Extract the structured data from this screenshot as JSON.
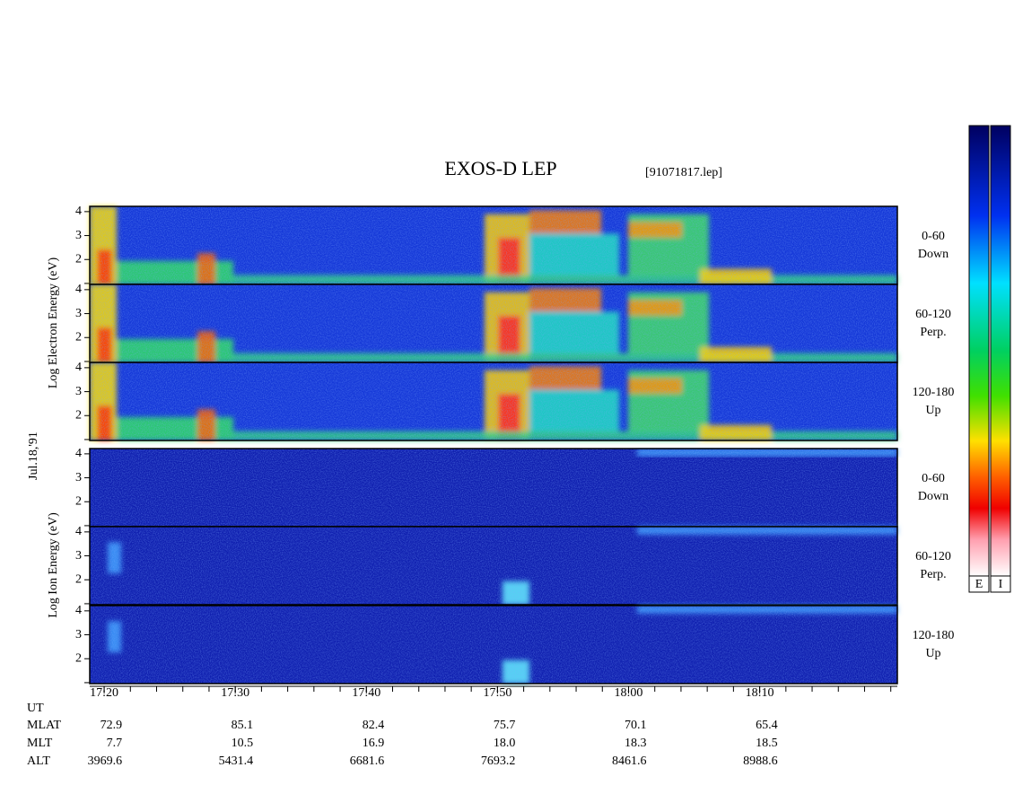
{
  "title": "EXOS-D LEP",
  "file": "[91071817.lep]",
  "date": "Jul.18,'91",
  "electron": {
    "y_label": "Log  Electron  Energy (eV)",
    "panels": [
      {
        "angle": "0-60",
        "direction": "Down"
      },
      {
        "angle": "60-120",
        "direction": "Perp."
      },
      {
        "angle": "120-180",
        "direction": "Up"
      }
    ]
  },
  "ion": {
    "y_label": "Log  Ion  Energy (eV)",
    "panels": [
      {
        "angle": "0-60",
        "direction": "Down"
      },
      {
        "angle": "60-120",
        "direction": "Perp."
      },
      {
        "angle": "120-180",
        "direction": "Up"
      }
    ]
  },
  "ylim": [
    0.96,
    4.22
  ],
  "yticks": [
    2,
    3,
    4
  ],
  "minor_yticks": [
    1
  ],
  "time_axis": {
    "xlim": [
      1038.9,
      1100.5
    ],
    "ticks": [
      {
        "value": 1040,
        "label": "17:20"
      },
      {
        "value": 1050,
        "label": "17:30"
      },
      {
        "value": 1060,
        "label": "17:40"
      },
      {
        "value": 1070,
        "label": "17:50"
      },
      {
        "value": 1080,
        "label": "18:00"
      },
      {
        "value": 1090,
        "label": "18:10"
      }
    ],
    "minor_ticks": [
      1040,
      1042,
      1044,
      1046,
      1048,
      1050,
      1052,
      1054,
      1056,
      1058,
      1060,
      1062,
      1064,
      1066,
      1068,
      1070,
      1072,
      1074,
      1076,
      1078,
      1080,
      1082,
      1084,
      1086,
      1088,
      1090,
      1092,
      1094,
      1096,
      1098,
      1100
    ]
  },
  "ephemeris": {
    "row_labels": [
      "UT",
      "MLAT",
      "MLT",
      "ALT"
    ],
    "MLAT": [
      "72.9",
      "85.1",
      "82.4",
      "75.7",
      "70.1",
      "65.4"
    ],
    "MLT": [
      "7.7",
      "10.5",
      "16.9",
      "18.0",
      "18.3",
      "18.5"
    ],
    "ALT": [
      "3969.6",
      "5431.4",
      "6681.6",
      "7693.2",
      "8461.6",
      "8988.6"
    ]
  },
  "colorbars": [
    "E",
    "I"
  ]
}
